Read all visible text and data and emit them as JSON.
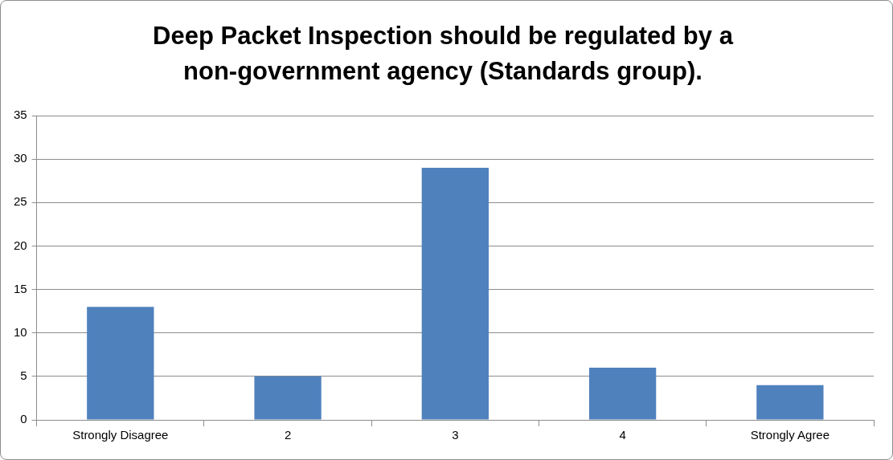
{
  "chart_data": {
    "type": "bar",
    "title": "Deep Packet Inspection should be regulated by a non-government agency (Standards group).",
    "categories": [
      "Strongly Disagree",
      "2",
      "3",
      "4",
      "Strongly Agree"
    ],
    "values": [
      13,
      5,
      29,
      6,
      4
    ],
    "color": "#4f81bd",
    "ylim": [
      0,
      35
    ],
    "yticks": [
      0,
      5,
      10,
      15,
      20,
      25,
      30,
      35
    ],
    "grid": "y",
    "legend": false
  }
}
